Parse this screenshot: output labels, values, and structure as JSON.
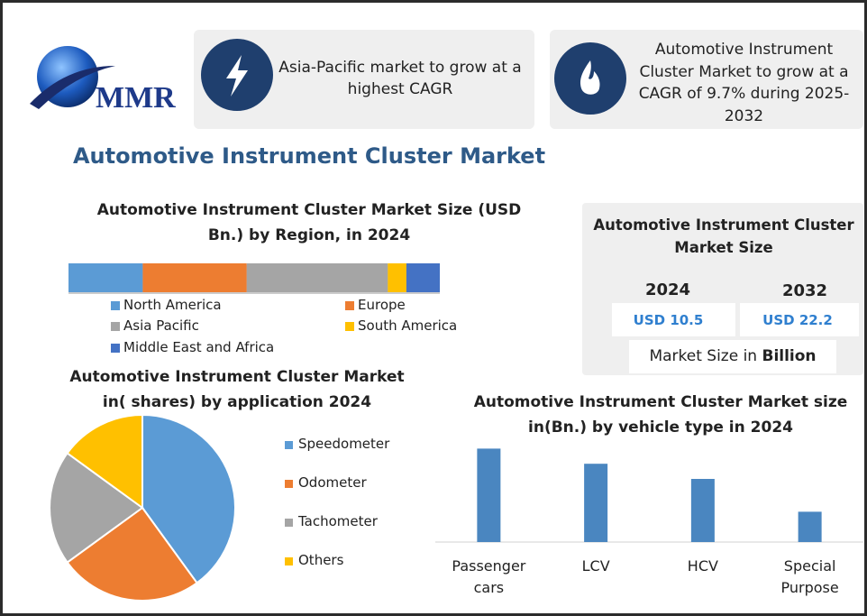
{
  "logo": "MMR",
  "cards": [
    "Asia-Pacific market to grow at a highest CAGR",
    "Automotive Instrument Cluster Market to grow at a CAGR of 9.7% during 2025-2032"
  ],
  "title": "Automotive Instrument Cluster Market",
  "market_size": {
    "title": "Automotive Instrument Cluster Market Size",
    "years": [
      "2024",
      "2032"
    ],
    "values": [
      "USD 10.5",
      "USD 22.2"
    ],
    "note": "Market Size in",
    "unit": "Billion"
  },
  "chart_data": [
    {
      "type": "stacked_bar",
      "title": "Automotive Instrument Cluster Market Size (USD Bn.) by Region, in 2024",
      "xlim": [
        0,
        100
      ],
      "series": [
        {
          "name": "North America",
          "color": "#5b9bd5",
          "values": [
            20
          ]
        },
        {
          "name": "Europe",
          "color": "#ed7d31",
          "values": [
            28
          ]
        },
        {
          "name": "Asia Pacific",
          "color": "#a5a5a5",
          "values": [
            38
          ]
        },
        {
          "name": "South America",
          "color": "#ffc000",
          "values": [
            5
          ]
        },
        {
          "name": "Middle East and Africa",
          "color": "#4472c4",
          "values": [
            9
          ]
        }
      ]
    },
    {
      "type": "pie",
      "title": "Automotive Instrument Cluster Market in( shares) by application 2024",
      "categories": [
        "Speedometer",
        "Odometer",
        "Tachometer",
        "Others"
      ],
      "values": [
        40,
        25,
        20,
        15
      ],
      "colors": [
        "#5b9bd5",
        "#ed7d31",
        "#a5a5a5",
        "#ffc000"
      ]
    },
    {
      "type": "bar",
      "title": "Automotive Instrument Cluster Market size in(Bn.) by vehicle type in 2024",
      "categories": [
        "Passenger cars",
        "LCV",
        "HCV",
        "Special Purpose"
      ],
      "values": [
        3.7,
        3.1,
        2.5,
        1.2
      ],
      "color": "#4a86c0",
      "ylim": [
        0,
        4
      ]
    }
  ]
}
